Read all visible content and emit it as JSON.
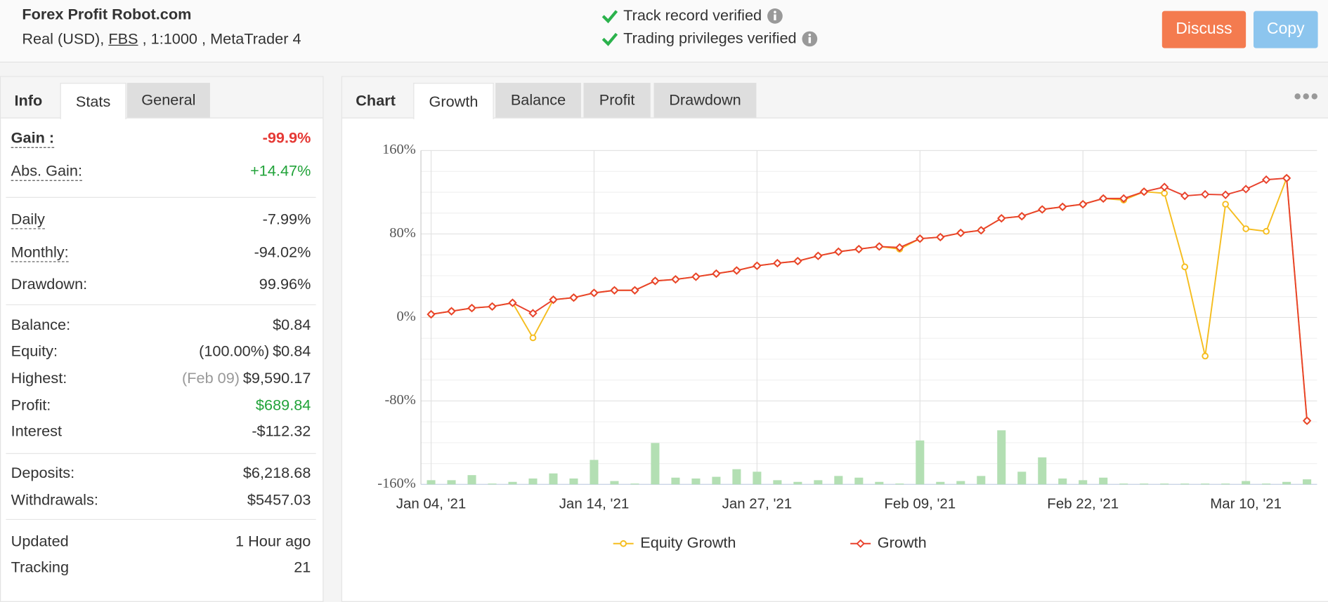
{
  "header": {
    "title": "Forex Profit Robot.com",
    "account_prefix": "Real (USD),",
    "broker": "FBS",
    "account_suffix": ", 1:1000 , MetaTrader 4",
    "verifications": [
      "Track record verified",
      "Trading privileges verified"
    ],
    "buttons": [
      "Discuss",
      "Copy"
    ]
  },
  "stats_panel": {
    "tabs": [
      "Info",
      "Stats",
      "General"
    ],
    "rows": [
      {
        "label": "Gain :",
        "value": "-99.9%"
      },
      {
        "label": "Abs. Gain:",
        "value": "+14.47%"
      },
      {
        "label": "Daily",
        "value": "-7.99%"
      },
      {
        "label": "Monthly:",
        "value": "-94.02%"
      },
      {
        "label": "Drawdown:",
        "value": "99.96%"
      },
      {
        "label": "Balance:",
        "value": "$0.84"
      },
      {
        "label": "Equity:",
        "note": "(100.00%)",
        "value": "$0.84"
      },
      {
        "label": "Highest:",
        "note": "(Feb 09)",
        "value": "$9,590.17"
      },
      {
        "label": "Profit:",
        "value": "$689.84"
      },
      {
        "label": "Interest",
        "value": "-$112.32"
      },
      {
        "label": "Deposits:",
        "value": "$6,218.68"
      },
      {
        "label": "Withdrawals:",
        "value": "$5457.03"
      },
      {
        "label": "Updated",
        "value": "1 Hour ago"
      },
      {
        "label": "Tracking",
        "value": "21"
      }
    ]
  },
  "chart_panel": {
    "tabs": [
      "Chart",
      "Growth",
      "Balance",
      "Profit",
      "Drawdown"
    ]
  },
  "chart_data": {
    "type": "line",
    "categories": [
      "Jan 04, '21",
      null,
      null,
      null,
      null,
      null,
      null,
      null,
      "Jan 14, '21",
      null,
      null,
      null,
      null,
      null,
      null,
      null,
      "Jan 27, '21",
      null,
      null,
      null,
      null,
      null,
      null,
      null,
      "Feb 09, '21",
      null,
      null,
      null,
      null,
      null,
      null,
      null,
      "Feb 22, '21",
      null,
      null,
      null,
      null,
      null,
      null,
      null,
      "Mar 10, '21",
      null,
      null,
      null
    ],
    "series": [
      {
        "name": "Equity Growth",
        "color": "#f5bd1f",
        "marker": "circle",
        "values": [
          3,
          6,
          9,
          10.5,
          14,
          -19.5,
          17,
          19,
          23.5,
          26,
          26,
          35,
          36.5,
          39,
          42,
          45,
          49.5,
          52,
          54,
          59,
          63,
          65.5,
          68,
          65.5,
          75.5,
          77,
          81,
          83.5,
          95,
          97,
          103.5,
          106,
          108.5,
          114,
          112.5,
          120.5,
          119,
          48.5,
          -37,
          108.5,
          85,
          82.5,
          133.5,
          -99
        ]
      },
      {
        "name": "Growth",
        "color": "#e8412c",
        "marker": "diamond",
        "values": [
          3,
          6,
          9,
          10.5,
          14,
          4,
          17,
          19,
          23.5,
          26,
          26,
          35,
          36.5,
          39,
          42,
          45,
          49.5,
          52,
          54,
          59,
          63,
          65.5,
          68,
          67,
          75.5,
          77,
          81,
          83.5,
          95,
          97,
          103.5,
          106,
          108.5,
          114,
          114,
          120.5,
          125,
          116.5,
          118,
          117.5,
          123,
          132,
          133.5,
          -99
        ]
      }
    ],
    "bar_values": [
      5,
      5,
      11,
      1,
      3,
      7,
      13,
      7,
      29,
      4,
      1,
      49,
      8,
      7,
      9,
      18,
      15,
      5,
      3,
      5,
      10,
      8,
      3,
      1,
      52,
      3,
      4,
      10,
      64,
      15,
      32,
      7,
      5,
      8,
      1,
      1,
      1,
      1,
      1,
      1,
      4,
      1,
      3,
      6
    ],
    "bar_color": "#b3dfb3",
    "ylim": [
      -160,
      160
    ],
    "yticks": [
      {
        "value": -160,
        "label": "-160%"
      },
      {
        "value": -80,
        "label": "-80%"
      },
      {
        "value": 0,
        "label": "0%"
      },
      {
        "value": 80,
        "label": "80%"
      },
      {
        "value": 160,
        "label": "160%"
      }
    ],
    "grid": true
  }
}
